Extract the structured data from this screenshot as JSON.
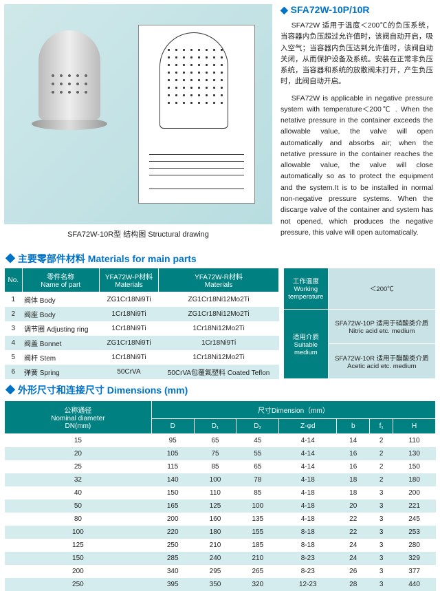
{
  "header": {
    "title": "SFA72W-10P/10R",
    "caption": "SFA72W-10R型  结构图  Structural drawing"
  },
  "paras": {
    "cn": "SFA72W 适用于温度＜200℃的负压系统，当容器内负压超过允许值时，该阀自动开启，吸入空气；当容器内负压达到允许值时，该阀自动关闭，从而保护设备及系统。安装在正常非负压系统，当容器和系统的放散阀未打开，产生负压时，此阀自动开启。",
    "en": "SFA72W is applicable in negative pressure system with temperature＜200℃ . When the netative pressure in the container exceeds the allowable value, the valve will open automatically and absorbs air; when the netative pressure in the container reaches the allowable value, the valve will close automatically so as to protect the equipment and the system.It is to be installed in normal non-negative pressure systems. When the discarge valve of the container and system has not opened, which produces the negative pressure, this valve will open automatically."
  },
  "sec1": "主要零部件材料  Materials for main parts",
  "t1": {
    "head": [
      "No.",
      "零件名称\nName of part",
      "YFA72W-P材料\nMaterials",
      "YFA72W-R材料\nMaterials"
    ],
    "rows": [
      [
        "1",
        "阀体  Body",
        "ZG1Cr18Ni9Ti",
        "ZG1Cr18Ni12Mo2Ti"
      ],
      [
        "2",
        "阀座  Body",
        "1Cr18Ni9Ti",
        "ZG1Cr18Ni12Mo2Ti"
      ],
      [
        "3",
        "调节圈  Adjusting ring",
        "1Cr18Ni9Ti",
        "1Cr18Ni12Mo2Ti"
      ],
      [
        "4",
        "阀盖  Bonnet",
        "ZG1Cr18Ni9Ti",
        "1Cr18Ni9Ti"
      ],
      [
        "5",
        "阀杆  Stem",
        "1Cr18Ni9Ti",
        "1Cr18Ni12Mo2Ti"
      ],
      [
        "6",
        "弹簧  Spring",
        "50CrVA",
        "50CrVA包覆氟塑料  Coated Teflon"
      ]
    ]
  },
  "t2": {
    "r1": [
      "工作温度\nWorking\ntemperature",
      "＜200℃"
    ],
    "r2h": "适用介质\nSuitable\nmedium",
    "r2a": "SFA72W-10P 适用于硝酸类介质\nNitric acid etc. medium",
    "r2b": "SFA72W-10R 适用于醋酸类介质\nAcetic acid etc. medium"
  },
  "sec2": "外形尺寸和连接尺寸  Dimensions (mm)",
  "t3": {
    "head1": [
      "公称通径\nNominal diameter\nDN(mm)",
      "尺寸Dimension（mm）"
    ],
    "head2": [
      "D",
      "D₁",
      "D₂",
      "Z-φd",
      "b",
      "f₁",
      "H"
    ],
    "rows": [
      [
        "15",
        "95",
        "65",
        "45",
        "4-14",
        "14",
        "2",
        "110"
      ],
      [
        "20",
        "105",
        "75",
        "55",
        "4-14",
        "16",
        "2",
        "130"
      ],
      [
        "25",
        "115",
        "85",
        "65",
        "4-14",
        "16",
        "2",
        "150"
      ],
      [
        "32",
        "140",
        "100",
        "78",
        "4-18",
        "18",
        "2",
        "180"
      ],
      [
        "40",
        "150",
        "110",
        "85",
        "4-18",
        "18",
        "3",
        "200"
      ],
      [
        "50",
        "165",
        "125",
        "100",
        "4-18",
        "20",
        "3",
        "221"
      ],
      [
        "80",
        "200",
        "160",
        "135",
        "4-18",
        "22",
        "3",
        "245"
      ],
      [
        "100",
        "220",
        "180",
        "155",
        "8-18",
        "22",
        "3",
        "253"
      ],
      [
        "125",
        "250",
        "210",
        "185",
        "8-18",
        "24",
        "3",
        "280"
      ],
      [
        "150",
        "285",
        "240",
        "210",
        "8-23",
        "24",
        "3",
        "329"
      ],
      [
        "200",
        "340",
        "295",
        "265",
        "8-23",
        "26",
        "3",
        "377"
      ],
      [
        "250",
        "395",
        "350",
        "320",
        "12-23",
        "28",
        "3",
        "440"
      ]
    ]
  }
}
